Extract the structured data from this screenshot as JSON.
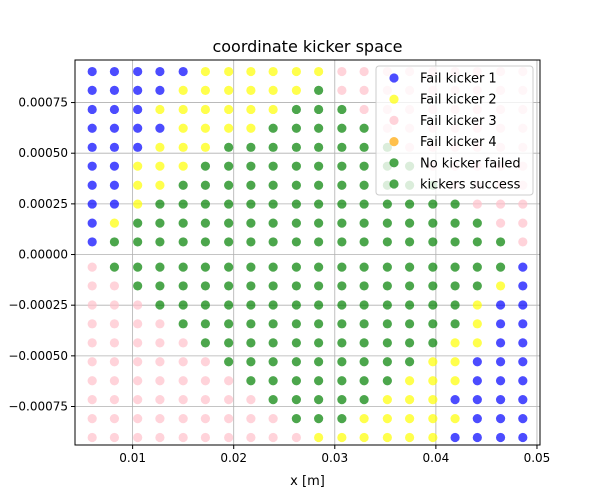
{
  "chart_data": {
    "type": "scatter",
    "title": "coordinate kicker space",
    "xlabel": "x [m]",
    "ylabel": "",
    "xlim": [
      0.0043,
      0.0503
    ],
    "ylim": [
      -0.00094,
      0.00096
    ],
    "xticks": [
      {
        "value": 0.01,
        "label": "0.01"
      },
      {
        "value": 0.02,
        "label": "0.02"
      },
      {
        "value": 0.03,
        "label": "0.03"
      },
      {
        "value": 0.04,
        "label": "0.04"
      },
      {
        "value": 0.05,
        "label": "0.05"
      }
    ],
    "yticks": [
      {
        "value": -0.00075,
        "label": "−0.00075"
      },
      {
        "value": -0.0005,
        "label": "−0.00050"
      },
      {
        "value": -0.00025,
        "label": "−0.00025"
      },
      {
        "value": 0.0,
        "label": "0.00000"
      },
      {
        "value": 0.00025,
        "label": "0.00025"
      },
      {
        "value": 0.0005,
        "label": "0.00050"
      },
      {
        "value": 0.00075,
        "label": "0.00075"
      }
    ],
    "grid": true,
    "legend_position": "top-right",
    "x": [
      0.006,
      0.0082,
      0.0105,
      0.0127,
      0.015,
      0.0172,
      0.0195,
      0.0217,
      0.0239,
      0.0262,
      0.0284,
      0.0307,
      0.0329,
      0.0352,
      0.0374,
      0.0397,
      0.0419,
      0.0441,
      0.0464,
      0.0486
    ],
    "y": [
      0.000903,
      0.00081,
      0.000716,
      0.000623,
      0.000529,
      0.000436,
      0.000342,
      0.000249,
      0.000155,
      6.22e-05,
      -6.22e-05,
      -0.000155,
      -0.000249,
      -0.000342,
      -0.000436,
      -0.000529,
      -0.000623,
      -0.000716,
      -0.00081,
      -0.000903
    ],
    "grid_codes_note_keys": "B=Fail kicker 1, Y=Fail kicker 2, P=Fail kicker 3, O=Fail kicker 4, N=No kicker failed, G=kickers success",
    "grid_codes": [
      "BBBBBYYYYYYPPPPPPPPP",
      "BBBBYYYYYYGPPPPPPPPP",
      "BBBYYYYYYGGGPPPPPPPP",
      "BBBBYYYYGGGGGPPPPPPP",
      "BBBYYYGGGGGGGGPPPPPP",
      "BBYYYGGGGGGGGGGPPPPP",
      "BBYYGGGGGGGGGGGGPPPP",
      "BBYGGGGGGGGGGGGGGPPP",
      "BYGGGGGGGGGGGGGGGGPP",
      "BGGGGGGGGGGGGGGGGGGP",
      "PGGGGGGGGGGGGGGGGGGB",
      "PPGGGGGGGGGGGGGGGGYB",
      "PPPGGGGGGGGGGGGGGYBB",
      "PPPPGGGGGGGGGGGGGYBB",
      "PPPPPGGGGGGGGGGGYYBB",
      "PPPPPPGGGGGGGGGYYBBB",
      "PPPPPPPGGGGGGGYYYBBB",
      "PPPPPPPPGGGGGYYYBBBB",
      "PPPPPPPPPGGGYYYYYBBB",
      "PPPPPPPPPPYYYYYYBBBB"
    ],
    "series": [
      {
        "code": "B",
        "name": "Fail kicker 1",
        "color": "#0000ff"
      },
      {
        "code": "Y",
        "name": "Fail kicker 2",
        "color": "#ffff00"
      },
      {
        "code": "P",
        "name": "Fail kicker 3",
        "color": "#ffc0cb"
      },
      {
        "code": "O",
        "name": "Fail kicker 4",
        "color": "#ffa500"
      },
      {
        "code": "N",
        "name": "No kicker failed",
        "color": "#008000"
      },
      {
        "code": "G",
        "name": "kickers success",
        "color": "#008000"
      }
    ],
    "marker_alpha": 0.7
  }
}
